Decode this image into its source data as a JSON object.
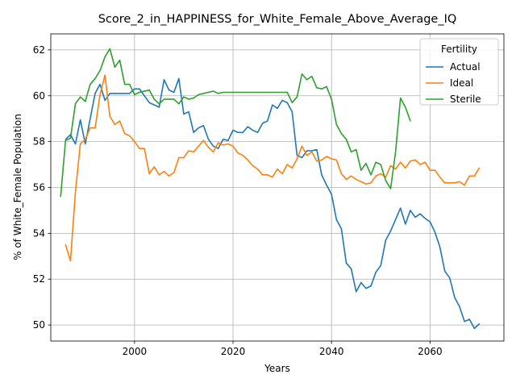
{
  "chart_data": {
    "type": "line",
    "title": "Score_2_in_HAPPINESS_for_White_Female_Above_Average_IQ",
    "xlabel": "Years",
    "ylabel": "% of White_Female Population",
    "xlim": [
      1983,
      2075
    ],
    "ylim": [
      49.3,
      62.7
    ],
    "xticks": [
      2000,
      2020,
      2040,
      2060
    ],
    "xtick_labels": [
      "2000",
      "2020",
      "2040",
      "2060"
    ],
    "yticks": [
      50,
      52,
      54,
      56,
      58,
      60,
      62
    ],
    "ytick_labels": [
      "50",
      "52",
      "54",
      "56",
      "58",
      "60",
      "62"
    ],
    "grid": true,
    "legend": {
      "title": "Fertility",
      "position": "top-right"
    },
    "series": [
      {
        "name": "Actual",
        "color": "#1f77b4",
        "x": [
          1986,
          1987,
          1988,
          1989,
          1990,
          1991,
          1992,
          1993,
          1994,
          1995,
          1996,
          1997,
          1998,
          1999,
          2000,
          2001,
          2002,
          2003,
          2004,
          2005,
          2006,
          2007,
          2008,
          2009,
          2010,
          2011,
          2012,
          2013,
          2014,
          2015,
          2016,
          2017,
          2018,
          2019,
          2020,
          2021,
          2022,
          2023,
          2024,
          2025,
          2026,
          2027,
          2028,
          2029,
          2030,
          2031,
          2032,
          2033,
          2034,
          2035,
          2036,
          2037,
          2038,
          2039,
          2040,
          2041,
          2042,
          2043,
          2044,
          2045,
          2046,
          2047,
          2048,
          2049,
          2050,
          2051,
          2052,
          2053,
          2054,
          2055,
          2056,
          2057,
          2058,
          2059,
          2060,
          2061,
          2062,
          2063,
          2064,
          2065,
          2066,
          2067,
          2068,
          2069,
          2070
        ],
        "y": [
          58.1,
          58.3,
          57.9,
          58.95,
          57.9,
          59.0,
          60.1,
          60.5,
          59.8,
          60.1,
          60.1,
          60.1,
          60.1,
          60.1,
          60.3,
          60.3,
          60.0,
          59.7,
          59.6,
          59.5,
          60.7,
          60.25,
          60.15,
          60.75,
          59.2,
          59.3,
          58.4,
          58.6,
          58.7,
          58.1,
          57.8,
          57.7,
          58.1,
          58.05,
          58.5,
          58.4,
          58.4,
          58.65,
          58.5,
          58.4,
          58.8,
          58.9,
          59.6,
          59.45,
          59.8,
          59.7,
          59.3,
          57.4,
          57.3,
          57.6,
          57.6,
          57.65,
          56.55,
          56.1,
          55.7,
          54.6,
          54.2,
          52.7,
          52.45,
          51.45,
          51.85,
          51.6,
          51.7,
          52.3,
          52.6,
          53.7,
          54.1,
          54.6,
          55.1,
          54.4,
          55.0,
          54.7,
          54.85,
          54.65,
          54.5,
          54.05,
          53.4,
          52.35,
          52.05,
          51.2,
          50.8,
          50.15,
          50.25,
          49.85,
          50.05
        ]
      },
      {
        "name": "Ideal",
        "color": "#ff7f0e",
        "x": [
          1986,
          1987,
          1988,
          1989,
          1990,
          1991,
          1992,
          1993,
          1994,
          1995,
          1996,
          1997,
          1998,
          1999,
          2000,
          2001,
          2002,
          2003,
          2004,
          2005,
          2006,
          2007,
          2008,
          2009,
          2010,
          2011,
          2012,
          2013,
          2014,
          2015,
          2016,
          2017,
          2018,
          2019,
          2020,
          2021,
          2022,
          2023,
          2024,
          2025,
          2026,
          2027,
          2028,
          2029,
          2030,
          2031,
          2032,
          2033,
          2034,
          2035,
          2036,
          2037,
          2038,
          2039,
          2040,
          2041,
          2042,
          2043,
          2044,
          2045,
          2046,
          2047,
          2048,
          2049,
          2050,
          2051,
          2052,
          2053,
          2054,
          2055,
          2056,
          2057,
          2058,
          2059,
          2060,
          2061,
          2062,
          2063,
          2064,
          2065,
          2066,
          2067,
          2068,
          2069,
          2070
        ],
        "y": [
          53.5,
          52.8,
          55.8,
          57.9,
          58.1,
          58.6,
          58.6,
          60.05,
          60.9,
          59.1,
          58.75,
          58.9,
          58.35,
          58.25,
          58.0,
          57.7,
          57.7,
          56.6,
          56.9,
          56.55,
          56.7,
          56.5,
          56.65,
          57.3,
          57.3,
          57.6,
          57.55,
          57.8,
          58.05,
          57.75,
          57.55,
          57.95,
          57.85,
          57.9,
          57.8,
          57.5,
          57.4,
          57.2,
          56.95,
          56.8,
          56.55,
          56.55,
          56.45,
          56.8,
          56.6,
          57.0,
          56.85,
          57.25,
          57.8,
          57.4,
          57.55,
          57.15,
          57.2,
          57.35,
          57.25,
          57.2,
          56.6,
          56.35,
          56.5,
          56.35,
          56.25,
          56.15,
          56.2,
          56.5,
          56.6,
          56.45,
          56.95,
          56.8,
          57.1,
          56.85,
          57.15,
          57.2,
          57.0,
          57.1,
          56.75,
          56.75,
          56.45,
          56.2,
          56.2,
          56.2,
          56.25,
          56.1,
          56.5,
          56.5,
          56.85
        ]
      },
      {
        "name": "Sterile",
        "color": "#2ca02c",
        "x": [
          1985,
          1986,
          1987,
          1988,
          1989,
          1990,
          1991,
          1992,
          1993,
          1994,
          1995,
          1996,
          1997,
          1998,
          1999,
          2000,
          2001,
          2002,
          2003,
          2004,
          2005,
          2006,
          2007,
          2008,
          2009,
          2010,
          2011,
          2012,
          2013,
          2014,
          2015,
          2016,
          2017,
          2018,
          2019,
          2020,
          2021,
          2022,
          2023,
          2024,
          2025,
          2026,
          2027,
          2028,
          2029,
          2030,
          2031,
          2032,
          2033,
          2034,
          2035,
          2036,
          2037,
          2038,
          2039,
          2040,
          2041,
          2042,
          2043,
          2044,
          2045,
          2046,
          2047,
          2048,
          2049,
          2050,
          2051,
          2052,
          2053,
          2054,
          2055,
          2056
        ],
        "y": [
          55.6,
          58.05,
          58.15,
          59.65,
          59.95,
          59.75,
          60.5,
          60.75,
          61.1,
          61.7,
          62.05,
          61.25,
          61.55,
          60.5,
          60.5,
          60.05,
          60.15,
          60.2,
          60.25,
          59.85,
          59.65,
          59.85,
          59.85,
          59.85,
          59.65,
          59.95,
          59.85,
          59.9,
          60.05,
          60.1,
          60.15,
          60.2,
          60.1,
          60.15,
          60.15,
          60.15,
          60.15,
          60.15,
          60.15,
          60.15,
          60.15,
          60.15,
          60.15,
          60.15,
          60.15,
          60.15,
          60.15,
          59.7,
          59.95,
          60.95,
          60.7,
          60.85,
          60.35,
          60.3,
          60.4,
          59.85,
          58.75,
          58.35,
          58.1,
          57.55,
          57.65,
          56.75,
          57.05,
          56.55,
          57.1,
          57.0,
          56.3,
          55.95,
          57.55,
          59.9,
          59.5,
          58.9
        ]
      }
    ]
  }
}
